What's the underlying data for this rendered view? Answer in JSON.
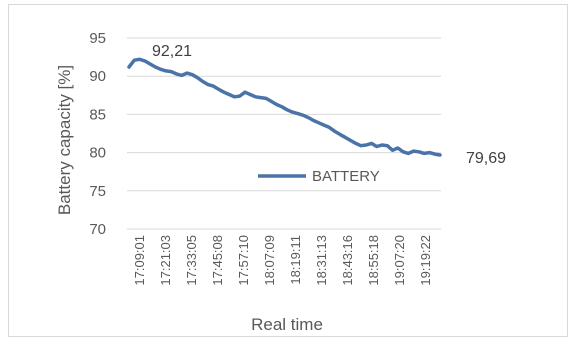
{
  "chart_data": {
    "type": "line",
    "xlabel": "Real time",
    "ylabel": "Battery capacity [%]",
    "ylim": [
      70,
      95
    ],
    "yticks": [
      "70",
      "75",
      "80",
      "85",
      "90",
      "95"
    ],
    "xticks": [
      "17:09:01",
      "17:21:03",
      "17:33:05",
      "17:45:08",
      "17:57:10",
      "18:07:09",
      "18:19:11",
      "18:31:13",
      "18:43:16",
      "18:55:18",
      "19:07:20",
      "19:19:22"
    ],
    "grid": true,
    "legend": "center",
    "annotations": {
      "first": "92,21",
      "last": "79,69"
    },
    "series": [
      {
        "name": "BATTERY",
        "color": "#4a74a8",
        "values": [
          91.2,
          92.1,
          92.21,
          92.0,
          91.6,
          91.2,
          90.9,
          90.7,
          90.6,
          90.3,
          90.1,
          90.4,
          90.2,
          89.8,
          89.3,
          88.9,
          88.7,
          88.3,
          87.9,
          87.6,
          87.3,
          87.4,
          87.9,
          87.6,
          87.3,
          87.2,
          87.1,
          86.7,
          86.3,
          86.0,
          85.6,
          85.3,
          85.1,
          84.9,
          84.6,
          84.2,
          83.9,
          83.6,
          83.3,
          82.8,
          82.4,
          82.0,
          81.6,
          81.2,
          80.9,
          81.0,
          81.2,
          80.8,
          81.0,
          80.9,
          80.3,
          80.6,
          80.1,
          79.9,
          80.2,
          80.1,
          79.9,
          80.0,
          79.8,
          79.69
        ]
      }
    ]
  }
}
